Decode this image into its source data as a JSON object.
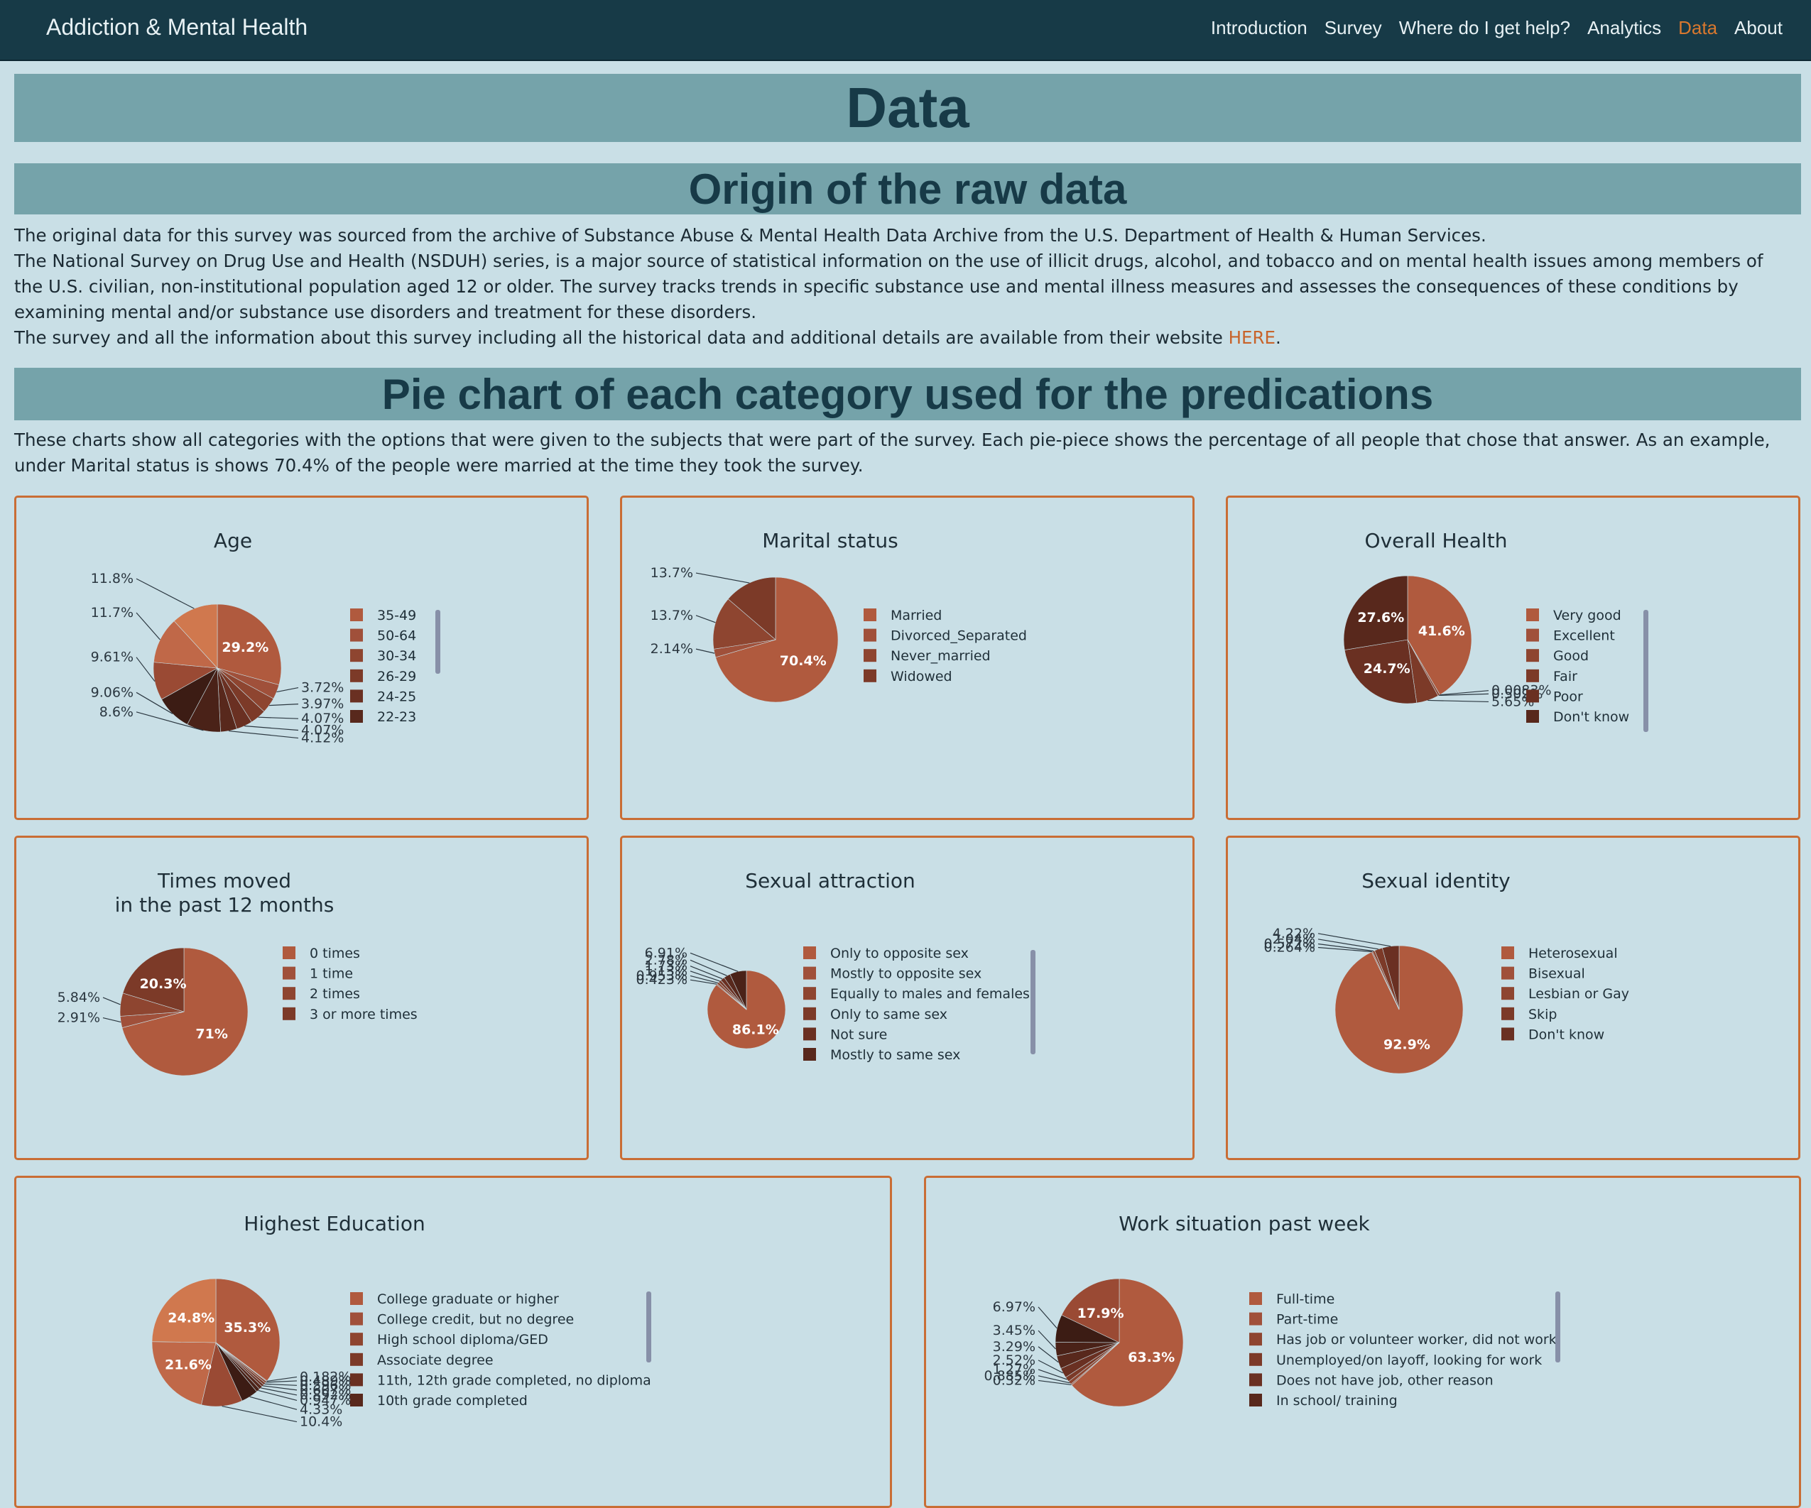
{
  "nav": {
    "brand": "Addiction & Mental Health",
    "links": [
      "Introduction",
      "Survey",
      "Where do I get help?",
      "Analytics",
      "Data",
      "About"
    ],
    "active": "Data",
    "accent": "#d9782e"
  },
  "page": {
    "title": "Data",
    "origin_heading": "Origin of the raw data",
    "origin_p1": "The original data for this survey was sourced from the archive of Substance Abuse & Mental Health Data Archive from the U.S. Department of Health & Human Services.",
    "origin_p2": "The National Survey on Drug Use and Health (NSDUH) series, is a major source of statistical information on the use of illicit drugs, alcohol, and tobacco and on mental health issues among members of the U.S. civilian, non-institutional population aged 12 or older. The survey tracks trends in specific substance use and mental illness measures and assesses the consequences of these conditions by examining mental and/or substance use disorders and treatment for these disorders.",
    "origin_p3_before": "The survey and all the information about this survey including all the historical data and additional details are available from their website ",
    "origin_p3_link": "HERE",
    "origin_p3_after": ".",
    "pie_heading": "Pie chart of each category used for the predications",
    "pie_intro": "These charts show all categories with the options that were given to the subjects that were part of the survey. Each pie-piece shows the percentage of all people that chose that answer. As an example, under Marital status is shows 70.4% of the people were married at the time they took the survey."
  },
  "chart_data": [
    {
      "type": "pie",
      "title": "Age",
      "slice_labels": [
        "29.2%",
        "3.72%",
        "3.97%",
        "4.07%",
        "4.07%",
        "4.12%",
        "8.6%",
        "9.06%",
        "9.61%",
        "11.7%",
        "11.8%"
      ],
      "values": [
        29.2,
        3.72,
        3.97,
        4.07,
        4.07,
        4.12,
        8.6,
        9.06,
        9.61,
        11.7,
        11.8
      ],
      "legend_visible": [
        "35-49",
        "50-64",
        "30-34",
        "26-29",
        "24-25",
        "22-23"
      ]
    },
    {
      "type": "pie",
      "title": "Marital status",
      "slice_labels": [
        "70.4%",
        "2.14%",
        "13.7%",
        "13.7%"
      ],
      "values": [
        70.4,
        2.14,
        13.7,
        13.7
      ],
      "legend_visible": [
        "Married",
        "Divorced_Separated",
        "Never_married",
        "Widowed"
      ]
    },
    {
      "type": "pie",
      "title": "Overall Health",
      "slice_labels": [
        "41.6%",
        "0.0083%",
        "0.502%",
        "5.65%",
        "24.7%",
        "27.6%"
      ],
      "values": [
        41.6,
        0.0083,
        0.502,
        5.65,
        24.7,
        27.6
      ],
      "legend_visible": [
        "Very good",
        "Excellent",
        "Good",
        "Fair",
        "Poor",
        "Don't know"
      ]
    },
    {
      "type": "pie",
      "title": "Times moved\nin the past 12 months",
      "slice_labels": [
        "71%",
        "2.91%",
        "5.84%",
        "20.3%"
      ],
      "values": [
        71,
        2.91,
        5.84,
        20.3
      ],
      "legend_visible": [
        "0 times",
        "1 time",
        "2 times",
        "3 or more times"
      ]
    },
    {
      "type": "pie",
      "title": "Sexual attraction",
      "slice_labels": [
        "86.1%",
        "0.423%",
        "0.953%",
        "1.13%",
        "1.73%",
        "2.78%",
        "6.91%"
      ],
      "values": [
        86.1,
        0.423,
        0.953,
        1.13,
        1.73,
        2.78,
        6.91
      ],
      "legend_visible": [
        "Only to opposite sex",
        "Mostly to opposite sex",
        "Equally to males and females",
        "Only to same sex",
        "Not sure",
        "Mostly to same sex"
      ]
    },
    {
      "type": "pie",
      "title": "Sexual identity",
      "slice_labels": [
        "92.9%",
        "0.264%",
        "0.572%",
        "2.04%",
        "4.22%"
      ],
      "values": [
        92.9,
        0.264,
        0.572,
        2.04,
        4.22
      ],
      "legend_visible": [
        "Heterosexual",
        "Bisexual",
        "Lesbian or Gay",
        "Skip",
        "Don't know"
      ]
    },
    {
      "type": "pie",
      "title": "Highest Education",
      "slice_labels": [
        "35.3%",
        "0.182%",
        "0.489%",
        "0.596%",
        "0.607%",
        "0.892%",
        "0.947%",
        "4.33%",
        "10.4%",
        "21.6%",
        "24.8%"
      ],
      "values": [
        35.3,
        0.182,
        0.489,
        0.596,
        0.607,
        0.892,
        0.947,
        4.33,
        10.4,
        21.6,
        24.8
      ],
      "legend_visible": [
        "College graduate or higher",
        "College credit, but no degree",
        "High school diploma/GED",
        "Associate degree",
        "11th, 12th grade completed, no diploma",
        "10th grade completed"
      ]
    },
    {
      "type": "pie",
      "title": "Work situation past week",
      "slice_labels": [
        "63.3%",
        "0.32%",
        "0.885%",
        "1.27%",
        "2.52%",
        "3.29%",
        "3.45%",
        "6.97%",
        "17.9%"
      ],
      "values": [
        63.3,
        0.32,
        0.885,
        1.27,
        2.52,
        3.29,
        3.45,
        6.97,
        17.9
      ],
      "legend_visible": [
        "Full-time",
        "Part-time",
        "Has job or volunteer worker, did not work",
        "Unemployed/on layoff, looking for work",
        "Does not have job, other reason",
        "In school/ training"
      ]
    }
  ]
}
